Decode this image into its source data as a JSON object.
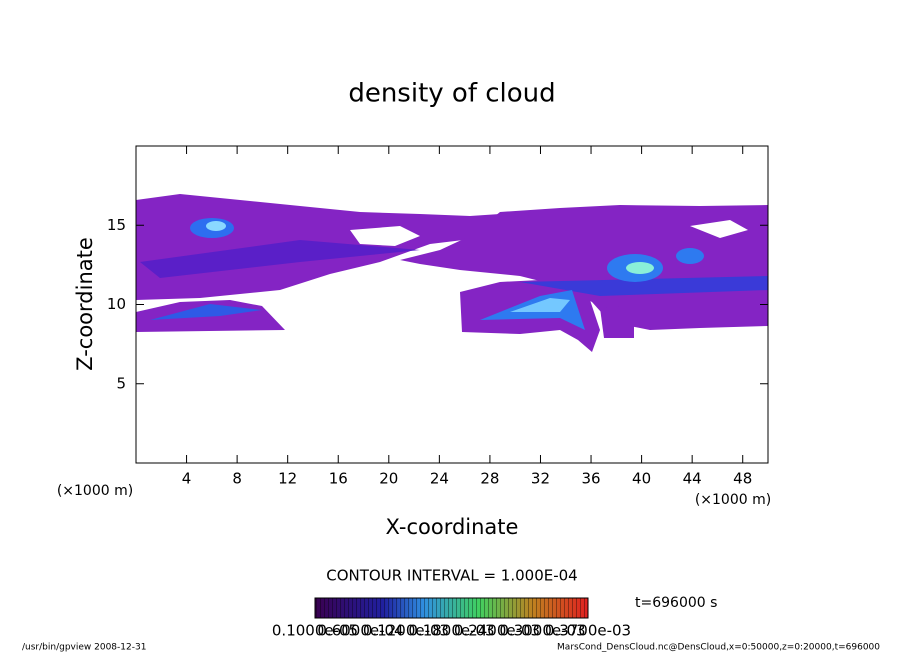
{
  "chart_data": {
    "type": "contour",
    "title": "density of cloud",
    "xlabel": "X-coordinate",
    "ylabel": "Z-coordinate",
    "xunit": "(×1000 m)",
    "yunit": "(×1000 m)",
    "xlim": [
      0,
      50
    ],
    "ylim": [
      0,
      20
    ],
    "xticks": [
      4,
      8,
      12,
      16,
      20,
      24,
      28,
      32,
      36,
      40,
      44,
      48
    ],
    "yticks": [
      5,
      10,
      15
    ],
    "contour_interval": "CONTOUR INTERVAL = 1.000E-04",
    "time": "t=696000 s",
    "colorbar_labels": [
      "0.1000e-05",
      "0.6000e-04",
      "0.1200e-03",
      "0.1800e-03",
      "0.2400e-03",
      "0.3000e-03",
      "0.3700e-03"
    ],
    "footer_left": "/usr/bin/gpview   2008-12-31",
    "footer_right": "MarsCond_DensCloud.nc@DensCloud,x=0:50000,z=0:20000,t=696000"
  }
}
